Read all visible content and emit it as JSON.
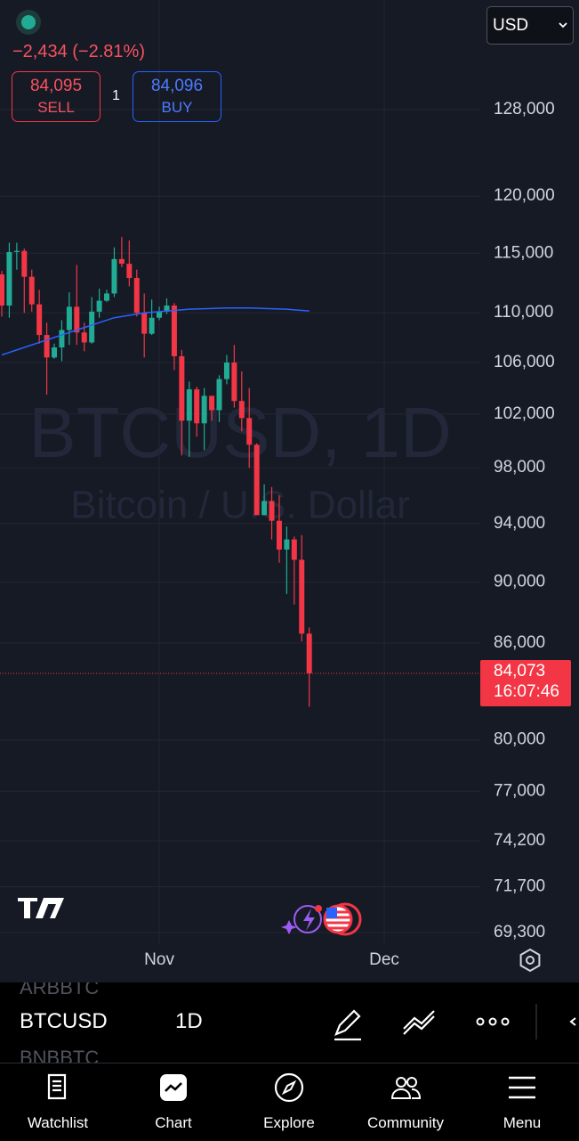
{
  "header": {
    "change": "−2,434 (−2.81%)",
    "sell_price": "84,095",
    "sell_label": "SELL",
    "spread": "1",
    "buy_price": "84,096",
    "buy_label": "BUY",
    "currency": "USD"
  },
  "watermark": {
    "symbol": "BTCUSD, 1D",
    "description": "Bitcoin / U.S. Dollar"
  },
  "symbol_bar": {
    "prev_symbol": "ARBBTC",
    "symbol": "BTCUSD",
    "interval": "1D",
    "next_symbol": "BNBBTC"
  },
  "nav": {
    "items": [
      "Watchlist",
      "Chart",
      "Explore",
      "Community",
      "Menu"
    ]
  },
  "chart_data": {
    "type": "candlestick",
    "log_scale": true,
    "grid": true,
    "up_color": "#22ab94",
    "down_color": "#f23645",
    "categories": [
      null,
      null,
      null,
      null,
      null,
      null,
      null,
      null,
      null,
      null,
      null,
      null,
      null,
      null,
      null,
      null,
      null,
      null,
      null,
      null,
      null,
      "Nov",
      null,
      null,
      null,
      null,
      null,
      null,
      null,
      null,
      null,
      null,
      null,
      null,
      null,
      null,
      null,
      null,
      null,
      null,
      null,
      null,
      null,
      null,
      null,
      null,
      null,
      null,
      null,
      null,
      null,
      "Dec"
    ],
    "open": [
      113200,
      110600,
      115100,
      115200,
      113000,
      110700,
      108200,
      106400,
      107200,
      108600,
      110500,
      108400,
      107600,
      110100,
      111000,
      111600,
      114500,
      114100,
      112900,
      110000,
      108300,
      109600,
      110100,
      110600,
      106500,
      101500,
      103900,
      101300,
      103400,
      102300,
      104700,
      106000,
      103000,
      101700,
      99700,
      94600,
      95600,
      94200,
      92200,
      92900,
      91500,
      86600,
      null,
      null,
      null,
      null,
      null,
      null,
      null,
      null,
      null,
      null
    ],
    "high": [
      113500,
      115900,
      115900,
      115400,
      113600,
      111900,
      109200,
      107500,
      109400,
      111700,
      114000,
      109200,
      111300,
      112000,
      111900,
      115500,
      116400,
      116100,
      113600,
      111600,
      111100,
      110500,
      111200,
      110800,
      107000,
      104500,
      104100,
      104000,
      103400,
      105000,
      106600,
      107400,
      105300,
      104000,
      99800,
      96800,
      96600,
      96000,
      93800,
      93100,
      93200,
      87000,
      null,
      null,
      null,
      null,
      null,
      null,
      null,
      null,
      null,
      null
    ],
    "low": [
      109700,
      109600,
      113600,
      110000,
      110100,
      107500,
      103500,
      106300,
      106100,
      107400,
      107400,
      106900,
      107500,
      109600,
      110900,
      111300,
      113800,
      112200,
      109700,
      106400,
      108200,
      109400,
      109900,
      105400,
      98900,
      98800,
      100300,
      99300,
      101500,
      101400,
      104300,
      102500,
      100700,
      98000,
      94600,
      94600,
      92900,
      91300,
      89200,
      88500,
      86100,
      82000,
      null,
      null,
      null,
      null,
      null,
      null,
      null,
      null,
      null,
      null
    ],
    "close": [
      110600,
      115100,
      115200,
      113000,
      110700,
      108200,
      106400,
      107200,
      108600,
      110500,
      108400,
      107600,
      110100,
      111000,
      111600,
      114500,
      114100,
      112900,
      110000,
      108300,
      109600,
      110100,
      110600,
      106500,
      101500,
      103900,
      101300,
      103400,
      102300,
      104700,
      106000,
      103000,
      101700,
      99700,
      94600,
      95600,
      94200,
      92200,
      92900,
      91500,
      86600,
      84073,
      null,
      null,
      null,
      null,
      null,
      null,
      null,
      null,
      null,
      null
    ],
    "ma": {
      "color": "#2962ff",
      "values": [
        106600,
        106800,
        107000,
        107200,
        107400,
        107600,
        107800,
        108000,
        108200,
        108400,
        108600,
        108800,
        109000,
        109200,
        109400,
        109600,
        109700,
        109800,
        109900,
        110000,
        110050,
        110100,
        110150,
        110200,
        110250,
        110300,
        110320,
        110340,
        110360,
        110380,
        110400,
        110400,
        110400,
        110400,
        110380,
        110360,
        110340,
        110320,
        110300,
        110250,
        110200,
        110150,
        null,
        null,
        null,
        null,
        null,
        null,
        null,
        null,
        null,
        null
      ]
    },
    "last_price": {
      "value": 84073,
      "label": "84,073"
    },
    "countdown": "16:07:46",
    "ylim": [
      68700,
      138900
    ],
    "yticks": [
      {
        "value": 69300,
        "label": "69,300"
      },
      {
        "value": 71700,
        "label": "71,700"
      },
      {
        "value": 74200,
        "label": "74,200"
      },
      {
        "value": 77000,
        "label": "77,000"
      },
      {
        "value": 80000,
        "label": "80,000"
      },
      {
        "value": 86000,
        "label": "86,000"
      },
      {
        "value": 90000,
        "label": "90,000"
      },
      {
        "value": 94000,
        "label": "94,000"
      },
      {
        "value": 98000,
        "label": "98,000"
      },
      {
        "value": 102000,
        "label": "102,000"
      },
      {
        "value": 106000,
        "label": "106,000"
      },
      {
        "value": 110000,
        "label": "110,000"
      },
      {
        "value": 115000,
        "label": "115,000"
      },
      {
        "value": 120000,
        "label": "120,000"
      },
      {
        "value": 128000,
        "label": "128,000"
      }
    ]
  }
}
